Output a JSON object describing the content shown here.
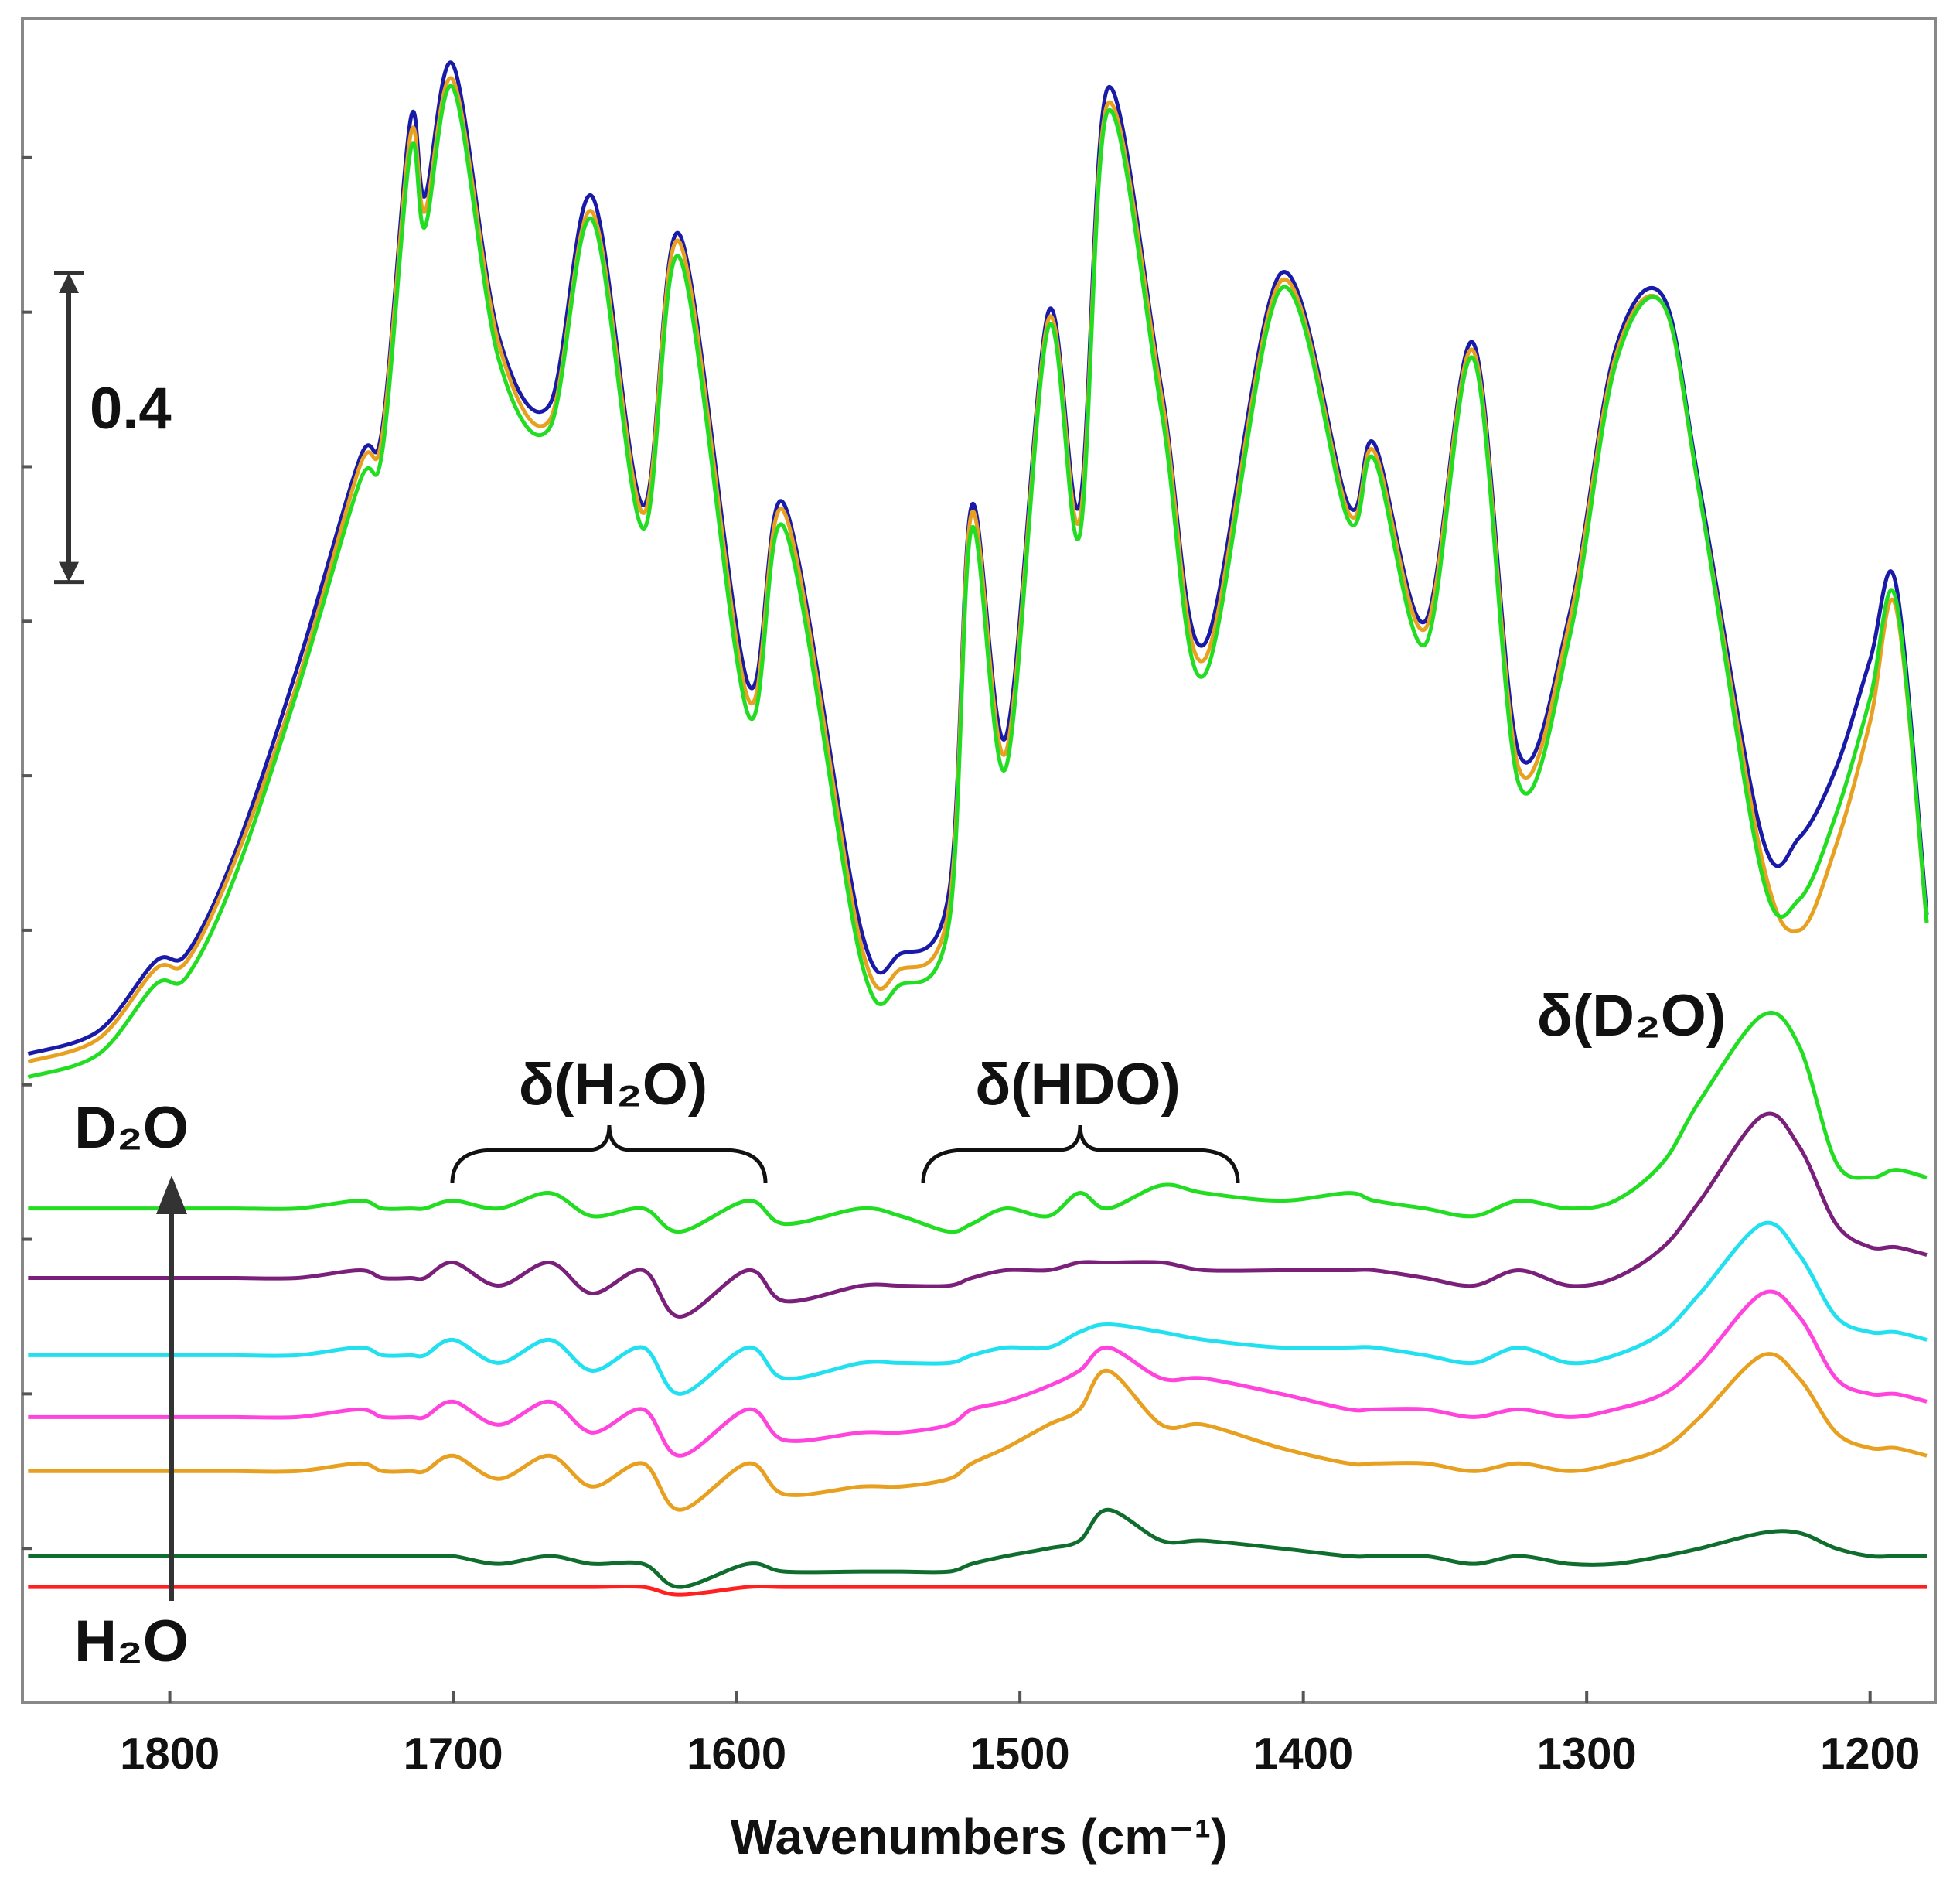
{
  "chart_data": {
    "type": "line",
    "x_label": "Wavenumbers (cm⁻¹)",
    "x": [
      1850,
      1825,
      1805,
      1794,
      1777,
      1755,
      1733,
      1725,
      1715,
      1710,
      1700,
      1684,
      1666,
      1651,
      1633,
      1620,
      1596,
      1583,
      1556,
      1542,
      1525,
      1517,
      1505,
      1490,
      1479,
      1469,
      1450,
      1435,
      1408,
      1384,
      1375,
      1357,
      1340,
      1324,
      1306,
      1290,
      1273,
      1260,
      1238,
      1225,
      1212,
      1200,
      1191,
      1180
    ],
    "xlim": [
      1852,
      1177
    ],
    "xticks": [
      1800,
      1700,
      1600,
      1500,
      1400,
      1300,
      1200
    ],
    "ylim": [
      0,
      2.18
    ],
    "yticks": [
      0.2,
      0.4,
      0.6,
      0.8,
      1.0,
      1.2,
      1.4,
      1.6,
      1.8,
      2.0
    ],
    "scale_bar": 0.4,
    "annotations": [
      "D₂O",
      "H₂O",
      "δ(H₂O)",
      "δ(HDO)",
      "δ(D₂O)"
    ],
    "series": [
      {
        "color": "#ff2020",
        "values": [
          0.15,
          0.15,
          0.15,
          0.15,
          0.15,
          0.15,
          0.15,
          0.15,
          0.15,
          0.15,
          0.15,
          0.15,
          0.15,
          0.15,
          0.15,
          0.14,
          0.15,
          0.15,
          0.15,
          0.15,
          0.15,
          0.15,
          0.15,
          0.15,
          0.15,
          0.15,
          0.15,
          0.15,
          0.15,
          0.15,
          0.15,
          0.15,
          0.15,
          0.15,
          0.15,
          0.15,
          0.15,
          0.15,
          0.15,
          0.15,
          0.15,
          0.15,
          0.15,
          0.15
        ]
      },
      {
        "color": "#0f6e2e",
        "values": [
          0.19,
          0.19,
          0.19,
          0.19,
          0.19,
          0.19,
          0.19,
          0.19,
          0.19,
          0.19,
          0.19,
          0.18,
          0.19,
          0.18,
          0.18,
          0.15,
          0.18,
          0.17,
          0.17,
          0.17,
          0.17,
          0.18,
          0.19,
          0.2,
          0.21,
          0.25,
          0.21,
          0.21,
          0.2,
          0.19,
          0.19,
          0.19,
          0.18,
          0.19,
          0.18,
          0.18,
          0.19,
          0.2,
          0.22,
          0.22,
          0.2,
          0.19,
          0.19,
          0.19
        ]
      },
      {
        "color": "#e8a020",
        "values": [
          0.3,
          0.3,
          0.3,
          0.3,
          0.3,
          0.3,
          0.31,
          0.3,
          0.3,
          0.3,
          0.32,
          0.29,
          0.32,
          0.28,
          0.31,
          0.25,
          0.31,
          0.27,
          0.28,
          0.28,
          0.29,
          0.31,
          0.33,
          0.36,
          0.38,
          0.43,
          0.36,
          0.36,
          0.33,
          0.31,
          0.31,
          0.31,
          0.3,
          0.31,
          0.3,
          0.31,
          0.33,
          0.37,
          0.45,
          0.42,
          0.35,
          0.33,
          0.33,
          0.32
        ]
      },
      {
        "color": "#ff44dd",
        "values": [
          0.37,
          0.37,
          0.37,
          0.37,
          0.37,
          0.37,
          0.38,
          0.37,
          0.37,
          0.37,
          0.39,
          0.36,
          0.39,
          0.35,
          0.38,
          0.32,
          0.38,
          0.34,
          0.35,
          0.35,
          0.36,
          0.38,
          0.39,
          0.41,
          0.43,
          0.46,
          0.42,
          0.42,
          0.4,
          0.38,
          0.38,
          0.38,
          0.37,
          0.38,
          0.37,
          0.38,
          0.4,
          0.44,
          0.53,
          0.5,
          0.42,
          0.4,
          0.4,
          0.39
        ]
      },
      {
        "color": "#22e0f0",
        "values": [
          0.45,
          0.45,
          0.45,
          0.45,
          0.45,
          0.45,
          0.46,
          0.45,
          0.45,
          0.45,
          0.47,
          0.44,
          0.47,
          0.43,
          0.46,
          0.4,
          0.46,
          0.42,
          0.44,
          0.44,
          0.44,
          0.45,
          0.46,
          0.46,
          0.48,
          0.49,
          0.48,
          0.47,
          0.46,
          0.46,
          0.46,
          0.45,
          0.44,
          0.46,
          0.44,
          0.45,
          0.48,
          0.53,
          0.62,
          0.58,
          0.5,
          0.48,
          0.48,
          0.47
        ]
      },
      {
        "color": "#7a1f7a",
        "values": [
          0.55,
          0.55,
          0.55,
          0.55,
          0.55,
          0.55,
          0.56,
          0.55,
          0.55,
          0.55,
          0.57,
          0.54,
          0.57,
          0.53,
          0.56,
          0.5,
          0.56,
          0.52,
          0.54,
          0.54,
          0.54,
          0.55,
          0.56,
          0.56,
          0.57,
          0.57,
          0.57,
          0.56,
          0.56,
          0.56,
          0.56,
          0.55,
          0.54,
          0.56,
          0.54,
          0.55,
          0.59,
          0.65,
          0.76,
          0.72,
          0.62,
          0.59,
          0.59,
          0.58
        ]
      },
      {
        "color": "#22dd22",
        "values": [
          0.64,
          0.64,
          0.64,
          0.64,
          0.64,
          0.64,
          0.65,
          0.64,
          0.64,
          0.64,
          0.65,
          0.64,
          0.66,
          0.63,
          0.64,
          0.61,
          0.65,
          0.62,
          0.64,
          0.63,
          0.61,
          0.62,
          0.64,
          0.63,
          0.66,
          0.64,
          0.67,
          0.66,
          0.65,
          0.66,
          0.65,
          0.64,
          0.63,
          0.65,
          0.64,
          0.65,
          0.7,
          0.78,
          0.89,
          0.85,
          0.7,
          0.68,
          0.69,
          0.68
        ]
      },
      {
        "color": "#1a1aa8",
        "values": [
          0.84,
          0.87,
          0.96,
          0.97,
          1.1,
          1.34,
          1.61,
          1.65,
          2.05,
          1.95,
          2.12,
          1.77,
          1.68,
          1.95,
          1.55,
          1.9,
          1.32,
          1.55,
          1.0,
          0.97,
          1.05,
          1.55,
          1.25,
          1.8,
          1.55,
          2.09,
          1.7,
          1.37,
          1.85,
          1.55,
          1.63,
          1.4,
          1.76,
          1.23,
          1.41,
          1.75,
          1.82,
          1.57,
          1.12,
          1.12,
          1.21,
          1.35,
          1.45,
          1.02
        ]
      },
      {
        "color": "#e8a020",
        "values": [
          0.83,
          0.86,
          0.95,
          0.96,
          1.09,
          1.32,
          1.6,
          1.64,
          2.03,
          1.93,
          2.1,
          1.76,
          1.66,
          1.93,
          1.54,
          1.89,
          1.3,
          1.54,
          0.98,
          0.95,
          1.03,
          1.54,
          1.23,
          1.79,
          1.53,
          2.07,
          1.69,
          1.35,
          1.84,
          1.54,
          1.62,
          1.39,
          1.75,
          1.21,
          1.4,
          1.74,
          1.81,
          1.56,
          1.09,
          1.0,
          1.11,
          1.27,
          1.42,
          1.01
        ]
      },
      {
        "color": "#22dd22",
        "values": [
          0.81,
          0.84,
          0.93,
          0.94,
          1.07,
          1.31,
          1.58,
          1.62,
          2.01,
          1.91,
          2.09,
          1.74,
          1.65,
          1.92,
          1.52,
          1.87,
          1.28,
          1.52,
          0.96,
          0.93,
          1.01,
          1.52,
          1.21,
          1.78,
          1.51,
          2.06,
          1.67,
          1.33,
          1.83,
          1.53,
          1.61,
          1.37,
          1.74,
          1.19,
          1.38,
          1.73,
          1.81,
          1.56,
          1.07,
          1.04,
          1.15,
          1.3,
          1.43,
          1.01
        ]
      }
    ]
  }
}
